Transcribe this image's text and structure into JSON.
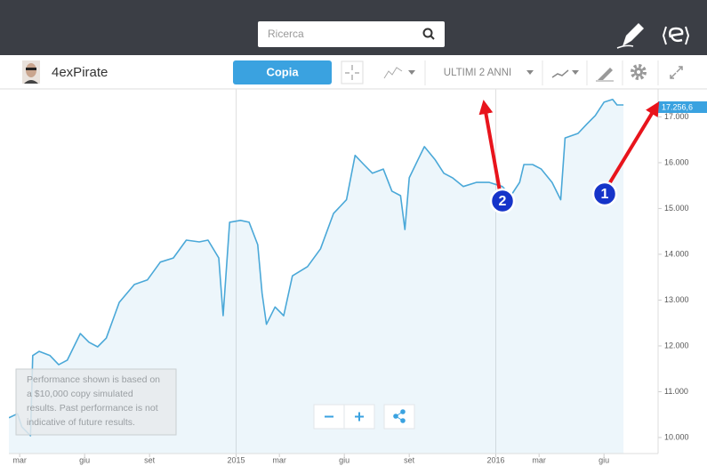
{
  "header": {
    "search_placeholder": "Ricerca"
  },
  "toolbar": {
    "user_name": "4exPirate",
    "copy_button": "Copia",
    "period": "ULTIMI 2 ANNI"
  },
  "chart_data": {
    "type": "line",
    "xlim": [
      -0.5,
      29.5
    ],
    "xticks": [
      {
        "value": 0,
        "label": "mar"
      },
      {
        "value": 3,
        "label": "giu"
      },
      {
        "value": 6,
        "label": "set"
      },
      {
        "value": 10,
        "label": "2015"
      },
      {
        "value": 12,
        "label": "mar"
      },
      {
        "value": 15,
        "label": "giu"
      },
      {
        "value": 18,
        "label": "set"
      },
      {
        "value": 22,
        "label": "2016"
      },
      {
        "value": 24,
        "label": "mar"
      },
      {
        "value": 27,
        "label": "giu"
      }
    ],
    "ylim": [
      9650,
      17610
    ],
    "yticks": [
      {
        "value": 10000,
        "label": "10.000"
      },
      {
        "value": 11000,
        "label": "11.000"
      },
      {
        "value": 12000,
        "label": "12.000"
      },
      {
        "value": 13000,
        "label": "13.000"
      },
      {
        "value": 14000,
        "label": "14.000"
      },
      {
        "value": 15000,
        "label": "15.000"
      },
      {
        "value": 16000,
        "label": "16.000"
      },
      {
        "value": 17000,
        "label": "17.000"
      }
    ],
    "last_value_label": "17.256,6",
    "series": [
      {
        "color": "#4aa8d8",
        "x": [
          -0.5,
          -0.1,
          0.1,
          0.5,
          0.6,
          0.9,
          1.4,
          1.8,
          2.2,
          2.8,
          3.2,
          3.6,
          4.0,
          4.6,
          5.3,
          5.9,
          6.5,
          7.1,
          7.7,
          8.3,
          8.7,
          9.2,
          9.4,
          9.7,
          10.2,
          10.6,
          11.0,
          11.2,
          11.4,
          11.8,
          12.2,
          12.6,
          13.3,
          13.9,
          14.5,
          15.1,
          15.5,
          15.9,
          16.3,
          16.8,
          17.2,
          17.6,
          17.8,
          18.0,
          18.4,
          18.7,
          19.2,
          19.6,
          20.0,
          20.5,
          21.1,
          21.7,
          22.3,
          22.7,
          23.1,
          23.3,
          23.7,
          24.1,
          24.6,
          25.0,
          25.2,
          25.8,
          26.2,
          26.6,
          27.0,
          27.4,
          27.6,
          27.9
        ],
        "values": [
          10430,
          10520,
          10230,
          10040,
          11790,
          11880,
          11790,
          11590,
          11690,
          12270,
          12080,
          11980,
          12170,
          12950,
          13340,
          13440,
          13830,
          13920,
          14310,
          14270,
          14310,
          13920,
          12660,
          14700,
          14740,
          14700,
          14210,
          13150,
          12470,
          12850,
          12660,
          13530,
          13730,
          14120,
          14890,
          15190,
          16160,
          15960,
          15770,
          15860,
          15380,
          15280,
          14540,
          15670,
          16060,
          16350,
          16060,
          15770,
          15670,
          15480,
          15570,
          15570,
          15480,
          15280,
          15570,
          15960,
          15960,
          15860,
          15570,
          15190,
          16540,
          16640,
          16840,
          17030,
          17320,
          17380,
          17260,
          17260
        ]
      }
    ]
  },
  "disclaimer": [
    "Performance shown is based on",
    "a $10,000 copy simulated",
    "results. Past performance is not",
    "indicative of future results."
  ],
  "annotations": [
    "1",
    "2"
  ]
}
